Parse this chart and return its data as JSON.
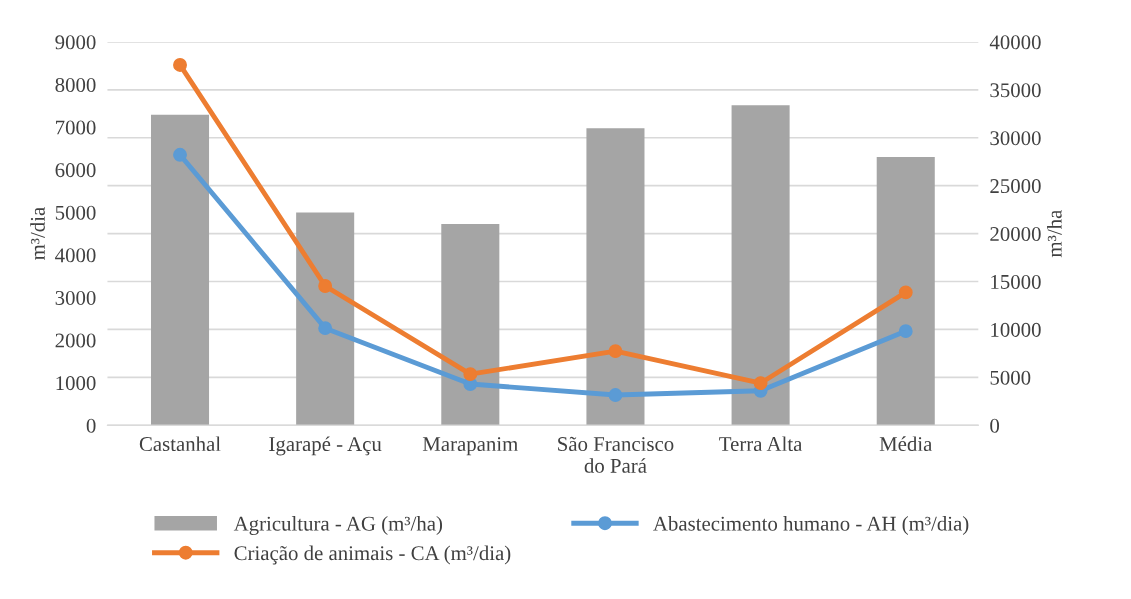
{
  "chart_data": {
    "type": "bar",
    "ylabel": "m³/dia",
    "y2label": "m³/ha",
    "categories": [
      "Castanhal",
      "Igarapé - Açu",
      "Marapanim",
      "São Francisco\ndo Pará",
      "Terra Alta",
      "Média"
    ],
    "series": [
      {
        "name": "Agricultura - AG (m³/ha)",
        "axis": "y2",
        "color": "#a5a5a5",
        "values": [
          32400,
          22200,
          21000,
          31000,
          33400,
          28000
        ]
      },
      {
        "name": "Abastecimento humano - AH (m³/dia)",
        "type": "line",
        "color": "#5b9bd5",
        "values": [
          6350,
          2280,
          970,
          710,
          810,
          2210
        ]
      },
      {
        "name": "Criação de animais - CA (m³/dia)",
        "type": "line",
        "color": "#ed7d31",
        "values": [
          8460,
          3270,
          1200,
          1740,
          990,
          3120
        ]
      }
    ],
    "ylim": [
      0,
      9000
    ],
    "yticks": [
      0,
      1000,
      2000,
      3000,
      4000,
      5000,
      6000,
      7000,
      8000,
      9000
    ],
    "y2lim": [
      0,
      40000
    ],
    "y2ticks": [
      0,
      5000,
      10000,
      15000,
      20000,
      25000,
      30000,
      35000,
      40000
    ],
    "grid": "y",
    "legend": "bottom",
    "marker": "circle",
    "line_style": "solid"
  }
}
